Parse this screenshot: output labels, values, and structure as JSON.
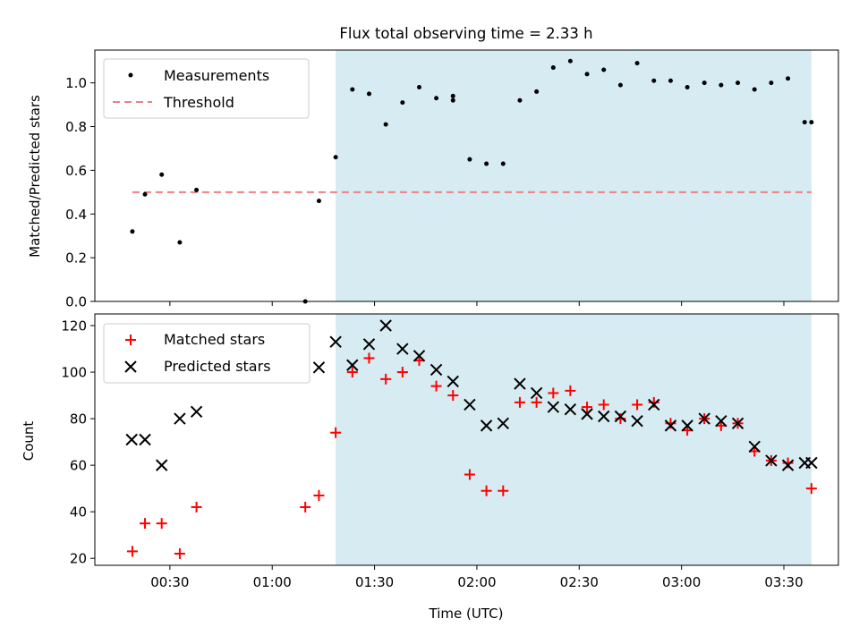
{
  "chart_data": [
    {
      "type": "scatter",
      "title": "Flux total observing time = 2.33 h",
      "xlabel": "",
      "ylabel": "Matched/Predicted stars",
      "ylim": [
        0,
        1.15
      ],
      "yticks": [
        "0.0",
        "0.2",
        "0.4",
        "0.6",
        "0.8",
        "1.0"
      ],
      "shaded_region": {
        "x_start": 78.6,
        "x_end": 218.1,
        "color": "#add8e6"
      },
      "legend": {
        "position": "top-left",
        "entries": [
          "Measurements",
          "Threshold"
        ]
      },
      "threshold": {
        "name": "Threshold",
        "y": 0.5,
        "x_start": 19.0,
        "x_end": 218.1,
        "color": "#f08080"
      },
      "series": [
        {
          "name": "Measurements",
          "color": "#000000",
          "x": [
            19.0,
            22.7,
            27.6,
            32.9,
            37.8,
            113.0,
            73.7,
            78.6,
            83.5,
            88.4,
            93.3,
            98.2,
            103.1,
            108.1,
            113.0,
            117.9,
            122.8,
            127.7,
            132.6,
            137.5,
            142.4,
            147.4,
            152.3,
            157.2,
            162.1,
            167.0,
            171.9,
            176.8,
            181.7,
            186.7,
            191.6,
            196.5,
            201.4,
            206.3,
            211.2,
            216.1,
            218.1
          ],
          "y": [
            0.32,
            0.49,
            0.58,
            0.27,
            0.51,
            0.92,
            0.46,
            0.66,
            0.97,
            0.95,
            0.81,
            0.91,
            0.98,
            0.93,
            0.94,
            0.65,
            0.63,
            0.63,
            0.92,
            0.96,
            1.07,
            1.1,
            1.04,
            1.06,
            0.99,
            1.09,
            1.01,
            1.01,
            0.98,
            1.0,
            0.99,
            1.0,
            0.97,
            1.0,
            1.02,
            0.82,
            0.82
          ]
        }
      ],
      "extra_points": [
        {
          "x": 69.7,
          "y": 0.0
        }
      ]
    },
    {
      "type": "scatter",
      "title": "",
      "xlabel": "Time (UTC)",
      "ylabel": "Count",
      "ylim": [
        17,
        125
      ],
      "yticks": [
        "20",
        "40",
        "60",
        "80",
        "100",
        "120"
      ],
      "xticks": [
        "00:30",
        "01:00",
        "01:30",
        "02:00",
        "02:30",
        "03:00",
        "03:30"
      ],
      "xtick_values": [
        30,
        60,
        90,
        120,
        150,
        180,
        210
      ],
      "xlim": [
        8,
        226
      ],
      "shaded_region": {
        "x_start": 78.6,
        "x_end": 218.1,
        "color": "#add8e6"
      },
      "legend": {
        "position": "top-left",
        "entries": [
          "Matched stars",
          "Predicted stars"
        ]
      },
      "series": [
        {
          "name": "Matched stars",
          "color": "#ff0000",
          "marker": "+",
          "x": [
            19.0,
            22.7,
            27.6,
            32.9,
            37.8,
            69.7,
            73.7,
            78.6,
            83.5,
            88.4,
            93.3,
            98.2,
            103.1,
            108.1,
            113.0,
            117.9,
            122.8,
            127.7,
            132.6,
            137.5,
            142.4,
            147.4,
            152.3,
            157.2,
            162.1,
            167.0,
            171.9,
            176.8,
            181.7,
            186.7,
            191.6,
            196.5,
            201.4,
            206.3,
            211.2,
            218.1
          ],
          "y": [
            23,
            35,
            35,
            22,
            42,
            42,
            47,
            74,
            100,
            106,
            97,
            100,
            105,
            94,
            90,
            56,
            49,
            49,
            87,
            87,
            91,
            92,
            85,
            86,
            80,
            86,
            87,
            78,
            75,
            80,
            77,
            78,
            66,
            62,
            61,
            50
          ]
        },
        {
          "name": "Predicted stars",
          "color": "#000000",
          "marker": "x",
          "x": [
            18.8,
            22.7,
            27.6,
            32.9,
            37.8,
            73.7,
            78.6,
            83.5,
            88.4,
            93.3,
            98.2,
            103.1,
            108.1,
            113.0,
            117.9,
            122.8,
            127.7,
            132.6,
            137.5,
            142.4,
            147.4,
            152.3,
            157.2,
            162.1,
            167.0,
            171.9,
            176.8,
            181.7,
            186.7,
            191.6,
            196.5,
            201.4,
            206.3,
            211.2,
            216.1,
            218.1
          ],
          "y": [
            71,
            71,
            60,
            80,
            83,
            102,
            113,
            103,
            112,
            120,
            110,
            107,
            101,
            96,
            86,
            77,
            78,
            95,
            91,
            85,
            84,
            82,
            81,
            81,
            79,
            86,
            77,
            77,
            80,
            79,
            78,
            68,
            62,
            60,
            61,
            61
          ]
        }
      ]
    }
  ]
}
